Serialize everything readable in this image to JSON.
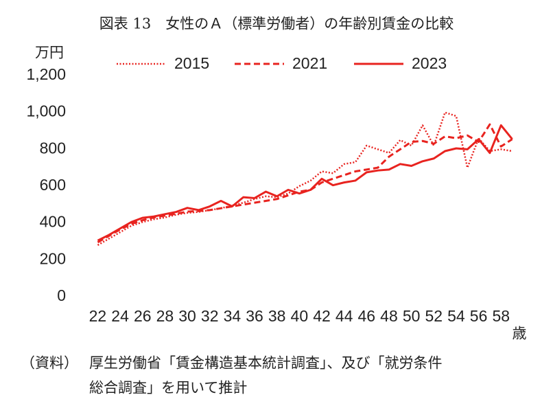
{
  "chart_data": {
    "type": "line",
    "title": "図表 13　女性のＡ（標準労働者）の年齢別賃金の比較",
    "y_unit": "万円",
    "x_unit": "歳",
    "x": [
      22,
      23,
      24,
      25,
      26,
      27,
      28,
      29,
      30,
      31,
      32,
      33,
      34,
      35,
      36,
      37,
      38,
      39,
      40,
      41,
      42,
      43,
      44,
      45,
      46,
      47,
      48,
      49,
      50,
      51,
      52,
      53,
      54,
      55,
      56,
      57,
      58,
      59
    ],
    "xlim": [
      21.3,
      59.7
    ],
    "xticks": [
      22,
      24,
      26,
      28,
      30,
      32,
      34,
      36,
      38,
      40,
      42,
      44,
      46,
      48,
      50,
      52,
      54,
      56,
      58
    ],
    "ylim": [
      0,
      1200
    ],
    "yticks": [
      0,
      200,
      400,
      600,
      800,
      {
        "value": 1000,
        "label": "1,000"
      },
      {
        "value": 1200,
        "label": "1,200"
      }
    ],
    "series": [
      {
        "name": "2015",
        "color": "#e8231f",
        "dash": "dotted",
        "values": [
          280,
          315,
          350,
          385,
          405,
          420,
          430,
          445,
          455,
          460,
          470,
          480,
          495,
          510,
          530,
          545,
          540,
          560,
          600,
          630,
          680,
          670,
          720,
          730,
          820,
          800,
          780,
          850,
          820,
          930,
          820,
          1000,
          980,
          700,
          860,
          790,
          800,
          790
        ]
      },
      {
        "name": "2021",
        "color": "#e8231f",
        "dash": "dashed",
        "values": [
          295,
          330,
          365,
          395,
          415,
          430,
          440,
          450,
          462,
          465,
          470,
          480,
          490,
          500,
          510,
          520,
          530,
          550,
          570,
          580,
          620,
          640,
          660,
          680,
          690,
          700,
          760,
          800,
          840,
          845,
          830,
          870,
          860,
          875,
          840,
          935,
          815,
          855
        ]
      },
      {
        "name": "2023",
        "color": "#e8231f",
        "dash": "solid",
        "values": [
          305,
          335,
          370,
          405,
          428,
          435,
          448,
          460,
          482,
          470,
          490,
          520,
          490,
          540,
          535,
          570,
          545,
          580,
          560,
          580,
          640,
          605,
          620,
          630,
          675,
          685,
          690,
          720,
          710,
          735,
          750,
          790,
          805,
          800,
          855,
          780,
          930,
          855
        ]
      }
    ],
    "note_label": "（資料）",
    "note_lines": [
      "厚生労働省「賃金構造基本統計調査」、及び「就労条件",
      "総合調査」を用いて推計"
    ]
  }
}
